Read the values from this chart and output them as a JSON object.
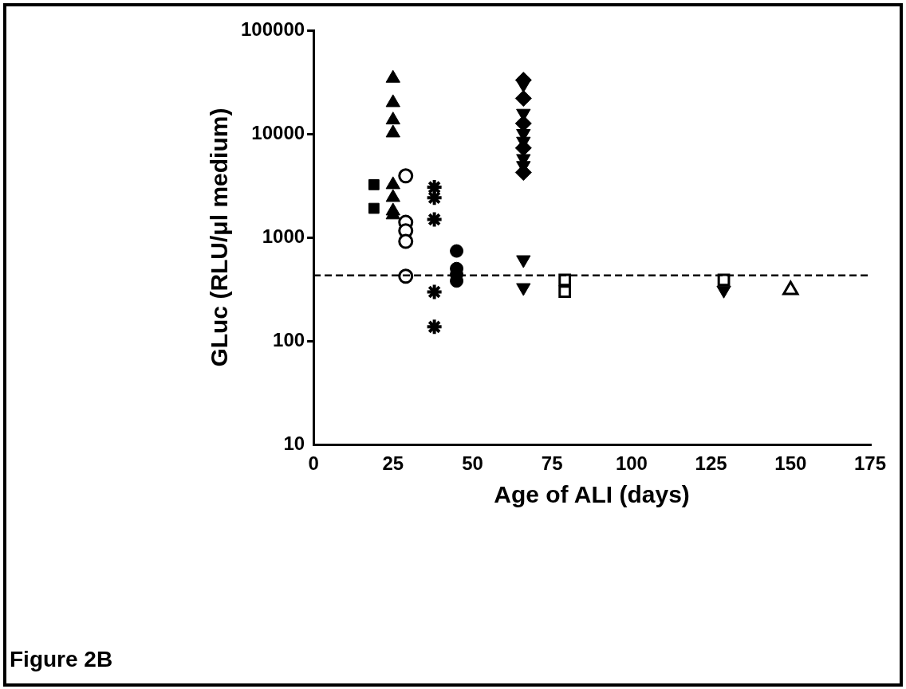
{
  "chart_data": {
    "type": "scatter",
    "xlabel": "Age of ALI (days)",
    "ylabel": "GLuc (RLU/μl medium)",
    "xlim": [
      0,
      175
    ],
    "xticks": [
      0,
      25,
      50,
      75,
      100,
      125,
      150,
      175
    ],
    "ylim": [
      10,
      100000
    ],
    "yticks": [
      10,
      100,
      1000,
      10000,
      100000
    ],
    "log": "y",
    "grid": false,
    "legend": false,
    "ref_lines": [
      {
        "axis": "y",
        "value": 430,
        "line_style": "dashed",
        "color": "#000000"
      }
    ],
    "annotations": [
      "Figure 2B"
    ],
    "series": [
      {
        "color": "#000000",
        "marker": "square",
        "x": [
          19,
          19
        ],
        "values": [
          3230,
          1910
        ]
      },
      {
        "color": "#000000",
        "marker": "triangle",
        "x": [
          25,
          25,
          25,
          25,
          25,
          25,
          25,
          25
        ],
        "values": [
          34400,
          20000,
          13600,
          10200,
          3230,
          2430,
          1800,
          1650
        ]
      },
      {
        "color": "#ffffff",
        "marker": "circle",
        "x": [
          29,
          29,
          29,
          29,
          29
        ],
        "values": [
          3930,
          1400,
          1160,
          916,
          422
        ]
      },
      {
        "color": "#000000",
        "marker": "cross",
        "x": [
          38,
          38,
          38,
          38,
          38
        ],
        "values": [
          3050,
          2420,
          1490,
          298,
          137
        ]
      },
      {
        "color": "#000000",
        "marker": "circle",
        "x": [
          45,
          45,
          45,
          45
        ],
        "values": [
          740,
          500,
          440,
          380
        ]
      },
      {
        "color": "#000000",
        "marker": "diamond",
        "x": [
          66,
          66,
          66,
          66,
          66
        ],
        "values": [
          33000,
          22000,
          12600,
          7300,
          4240
        ]
      },
      {
        "color": "#000000",
        "marker": "triangle-down",
        "x": [
          66,
          66,
          66,
          66,
          66,
          66,
          66,
          66,
          129
        ],
        "values": [
          30000,
          15800,
          10100,
          8500,
          5780,
          4950,
          610,
          328,
          310
        ]
      },
      {
        "color": "#ffffff",
        "marker": "square",
        "x": [
          79,
          79,
          129
        ],
        "values": [
          390,
          300,
          390
        ]
      },
      {
        "color": "#ffffff",
        "marker": "triangle",
        "x": [
          150
        ],
        "values": [
          312
        ]
      }
    ]
  }
}
